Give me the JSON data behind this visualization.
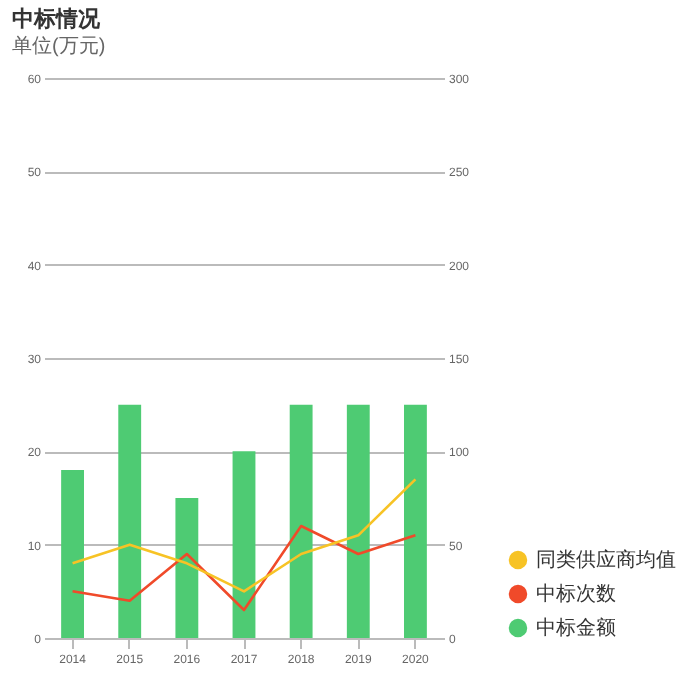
{
  "chart_data": {
    "type": "bar",
    "title": "中标情况",
    "subtitle": "单位(万元)",
    "categories": [
      "2014",
      "2015",
      "2016",
      "2017",
      "2018",
      "2019",
      "2020"
    ],
    "series": [
      {
        "name": "同类供应商均值",
        "type": "line",
        "axis": "y2",
        "color": "#f7c325",
        "values": [
          40,
          50,
          40,
          25,
          45,
          55,
          85
        ]
      },
      {
        "name": "中标次数",
        "type": "line",
        "color": "#f04a2a",
        "values": [
          5,
          4,
          9,
          3,
          12,
          9,
          11
        ]
      },
      {
        "name": "中标金额",
        "color": "#4ecb73",
        "values": [
          18,
          25,
          15,
          20,
          25,
          25,
          25
        ]
      }
    ],
    "ylim": [
      0,
      60
    ],
    "yticks": [
      0,
      10,
      20,
      30,
      40,
      50,
      60
    ],
    "y2lim": [
      0,
      300
    ],
    "y2ticks": [
      0,
      50,
      100,
      150,
      200,
      250,
      300
    ],
    "grid": "y",
    "legend": "bottom right"
  }
}
